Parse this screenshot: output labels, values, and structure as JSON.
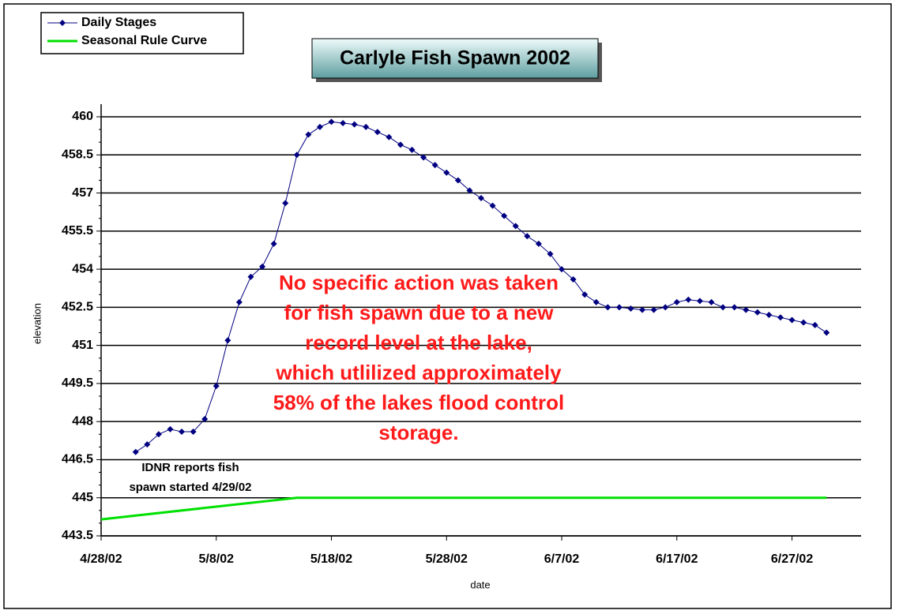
{
  "chart_data": {
    "type": "line",
    "title": "Carlyle Fish Spawn 2002",
    "x_label": "date",
    "y_label": "elevation",
    "xlim": [
      "4/28/02",
      "7/3/02"
    ],
    "xticks": [
      "4/28/02",
      "5/8/02",
      "5/18/02",
      "5/28/02",
      "6/7/02",
      "6/17/02",
      "6/27/02"
    ],
    "ylim": [
      443.5,
      460
    ],
    "yticks": [
      460,
      458.5,
      457,
      455.5,
      454,
      452.5,
      451,
      449.5,
      448,
      446.5,
      445,
      443.5
    ],
    "grid": true,
    "legend": "top-left",
    "series": [
      {
        "name": "Daily Stages",
        "color": "#000080",
        "marker": "diamond",
        "x": [
          "5/1/02",
          "5/2/02",
          "5/3/02",
          "5/4/02",
          "5/5/02",
          "5/6/02",
          "5/7/02",
          "5/8/02",
          "5/9/02",
          "5/10/02",
          "5/11/02",
          "5/12/02",
          "5/13/02",
          "5/14/02",
          "5/15/02",
          "5/16/02",
          "5/17/02",
          "5/18/02",
          "5/19/02",
          "5/20/02",
          "5/21/02",
          "5/22/02",
          "5/23/02",
          "5/24/02",
          "5/25/02",
          "5/26/02",
          "5/27/02",
          "5/28/02",
          "5/29/02",
          "5/30/02",
          "5/31/02",
          "6/1/02",
          "6/2/02",
          "6/3/02",
          "6/4/02",
          "6/5/02",
          "6/6/02",
          "6/7/02",
          "6/8/02",
          "6/9/02",
          "6/10/02",
          "6/11/02",
          "6/12/02",
          "6/13/02",
          "6/14/02",
          "6/15/02",
          "6/16/02",
          "6/17/02",
          "6/18/02",
          "6/19/02",
          "6/20/02",
          "6/21/02",
          "6/22/02",
          "6/23/02",
          "6/24/02",
          "6/25/02",
          "6/26/02",
          "6/27/02",
          "6/28/02",
          "6/29/02",
          "6/30/02"
        ],
        "values": [
          446.8,
          447.1,
          447.5,
          447.7,
          447.6,
          447.6,
          448.1,
          449.4,
          451.2,
          452.7,
          453.7,
          454.1,
          455.0,
          456.6,
          458.5,
          459.3,
          459.6,
          459.8,
          459.75,
          459.7,
          459.6,
          459.4,
          459.2,
          458.9,
          458.7,
          458.4,
          458.1,
          457.8,
          457.5,
          457.1,
          456.8,
          456.5,
          456.1,
          455.7,
          455.3,
          455.0,
          454.6,
          454.0,
          453.6,
          453.0,
          452.7,
          452.5,
          452.5,
          452.45,
          452.4,
          452.4,
          452.5,
          452.7,
          452.8,
          452.75,
          452.7,
          452.5,
          452.5,
          452.4,
          452.3,
          452.2,
          452.1,
          452.0,
          451.9,
          451.8,
          451.5
        ]
      },
      {
        "name": "Seasonal Rule Curve",
        "color": "#00e000",
        "marker": "none",
        "x": [
          "4/28/02",
          "5/15/02",
          "6/30/02"
        ],
        "values": [
          444.15,
          445,
          445
        ]
      }
    ],
    "annotations": [
      {
        "lines": [
          "IDNR reports fish",
          "spawn started 4/29/02"
        ]
      },
      {
        "lines": [
          "No specific action was taken",
          "for fish spawn due to a new",
          "record level at the lake,",
          "which utlilized approximately",
          "58% of the lakes flood control",
          "storage."
        ]
      }
    ]
  }
}
